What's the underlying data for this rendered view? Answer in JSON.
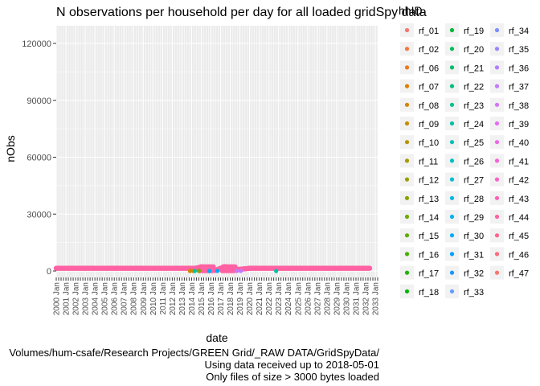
{
  "chart_data": {
    "type": "scatter",
    "title": "N observations per household per day for all loaded gridSpy data",
    "xlabel": "date",
    "ylabel": "nObs",
    "ylim": [
      0,
      120000
    ],
    "yticks": [
      0,
      30000,
      60000,
      90000,
      120000
    ],
    "xtick_labels": [
      "2000 Jan",
      "2001 Jan",
      "2002 Jan",
      "2003 Jan",
      "2004 Jan",
      "2005 Jan",
      "2006 Jan",
      "2007 Jan",
      "2008 Jan",
      "2009 Jan",
      "2010 Jan",
      "2011 Jan",
      "2012 Jan",
      "2013 Jan",
      "2014 Jan",
      "2015 Jan",
      "2016 Jan",
      "2017 Jan",
      "2018 Jan",
      "2019 Jan",
      "2020 Jan",
      "2021 Jan",
      "2022 Jan",
      "2023 Jan",
      "2024 Jan",
      "2025 Jan",
      "2026 Jan",
      "2027 Jan",
      "2028 Jan",
      "2029 Jan",
      "2030 Jan",
      "2031 Jan",
      "2032 Jan",
      "2033 Jan"
    ],
    "xlim": [
      "2000-01-01",
      "2033-04-01"
    ],
    "grid": true,
    "legend": {
      "title": "hhID",
      "placement": "right",
      "entries": [
        {
          "name": "rf_01",
          "color": "#F8766D"
        },
        {
          "name": "rf_02",
          "color": "#F2793F"
        },
        {
          "name": "rf_06",
          "color": "#EB7B1E"
        },
        {
          "name": "rf_07",
          "color": "#E08000"
        },
        {
          "name": "rf_08",
          "color": "#D38600"
        },
        {
          "name": "rf_09",
          "color": "#C68E00"
        },
        {
          "name": "rf_10",
          "color": "#B89500"
        },
        {
          "name": "rf_11",
          "color": "#A99A00"
        },
        {
          "name": "rf_12",
          "color": "#999F00"
        },
        {
          "name": "rf_13",
          "color": "#87A400"
        },
        {
          "name": "rf_14",
          "color": "#73A900"
        },
        {
          "name": "rf_15",
          "color": "#5EAD00"
        },
        {
          "name": "rf_16",
          "color": "#45B000"
        },
        {
          "name": "rf_17",
          "color": "#1EB400"
        },
        {
          "name": "rf_18",
          "color": "#00B700"
        },
        {
          "name": "rf_19",
          "color": "#00BA38"
        },
        {
          "name": "rf_20",
          "color": "#00BB55"
        },
        {
          "name": "rf_21",
          "color": "#00BC6B"
        },
        {
          "name": "rf_22",
          "color": "#00BE7F"
        },
        {
          "name": "rf_23",
          "color": "#00BF92"
        },
        {
          "name": "rf_24",
          "color": "#00C0A4"
        },
        {
          "name": "rf_25",
          "color": "#00C0B5"
        },
        {
          "name": "rf_26",
          "color": "#00BFC4"
        },
        {
          "name": "rf_27",
          "color": "#00BCD3"
        },
        {
          "name": "rf_28",
          "color": "#00B8E0"
        },
        {
          "name": "rf_29",
          "color": "#00B2EC"
        },
        {
          "name": "rf_30",
          "color": "#00ABF6"
        },
        {
          "name": "rf_31",
          "color": "#00A2FD"
        },
        {
          "name": "rf_32",
          "color": "#1998FF"
        },
        {
          "name": "rf_33",
          "color": "#619CFF"
        },
        {
          "name": "rf_34",
          "color": "#7E8EFF"
        },
        {
          "name": "rf_35",
          "color": "#9A85FF"
        },
        {
          "name": "rf_36",
          "color": "#B07FFF"
        },
        {
          "name": "rf_37",
          "color": "#C37AFF"
        },
        {
          "name": "rf_38",
          "color": "#D475FA"
        },
        {
          "name": "rf_39",
          "color": "#E26FF0"
        },
        {
          "name": "rf_40",
          "color": "#ED69E5"
        },
        {
          "name": "rf_41",
          "color": "#F564D7"
        },
        {
          "name": "rf_42",
          "color": "#FB62C7"
        },
        {
          "name": "rf_43",
          "color": "#FE61B6"
        },
        {
          "name": "rf_44",
          "color": "#FF62A3"
        },
        {
          "name": "rf_45",
          "color": "#FF6590"
        },
        {
          "name": "rf_46",
          "color": "#FD697C"
        },
        {
          "name": "rf_47",
          "color": "#F8766D"
        }
      ]
    },
    "series": [
      {
        "name": "rf_46",
        "color": "#FF62A3",
        "points": [
          [
            "2000-01-01",
            1440
          ],
          [
            "2003-01-01",
            1440
          ],
          [
            "2006-01-01",
            1440
          ],
          [
            "2009-01-01",
            1440
          ],
          [
            "2011-06-01",
            1440
          ],
          [
            "2014-06-01",
            1440
          ],
          [
            "2015-01-01",
            2200
          ],
          [
            "2015-06-01",
            1200
          ],
          [
            "2016-01-01",
            2000
          ],
          [
            "2016-06-01",
            300
          ],
          [
            "2017-01-01",
            1440
          ],
          [
            "2017-06-01",
            2300
          ],
          [
            "2018-01-01",
            1440
          ],
          [
            "2018-06-01",
            600
          ],
          [
            "2020-01-01",
            1440
          ],
          [
            "2024-01-01",
            1440
          ],
          [
            "2028-01-01",
            1440
          ],
          [
            "2032-06-01",
            1440
          ]
        ]
      },
      {
        "name": "rf_08",
        "color": "#D38600",
        "points": [
          [
            "2013-11-01",
            0
          ],
          [
            "2014-03-01",
            80
          ]
        ]
      },
      {
        "name": "rf_25",
        "color": "#00C0A4",
        "points": [
          [
            "2014-05-01",
            0
          ],
          [
            "2022-10-01",
            0
          ]
        ]
      },
      {
        "name": "rf_30",
        "color": "#00ABF6",
        "points": [
          [
            "2015-11-01",
            0
          ],
          [
            "2016-09-01",
            40
          ]
        ]
      },
      {
        "name": "rf_37",
        "color": "#C37AFF",
        "points": [
          [
            "2018-09-01",
            0
          ],
          [
            "2019-02-01",
            60
          ]
        ]
      },
      {
        "name": "rf_13",
        "color": "#87A400",
        "points": [
          [
            "2014-10-01",
            60
          ]
        ]
      }
    ]
  },
  "captions": [
    "Volumes/hum-csafe/Research Projects/GREEN Grid/_RAW DATA/GridSpyData/",
    "Using data received up to 2018-05-01",
    "Only files of size > 3000 bytes loaded"
  ]
}
